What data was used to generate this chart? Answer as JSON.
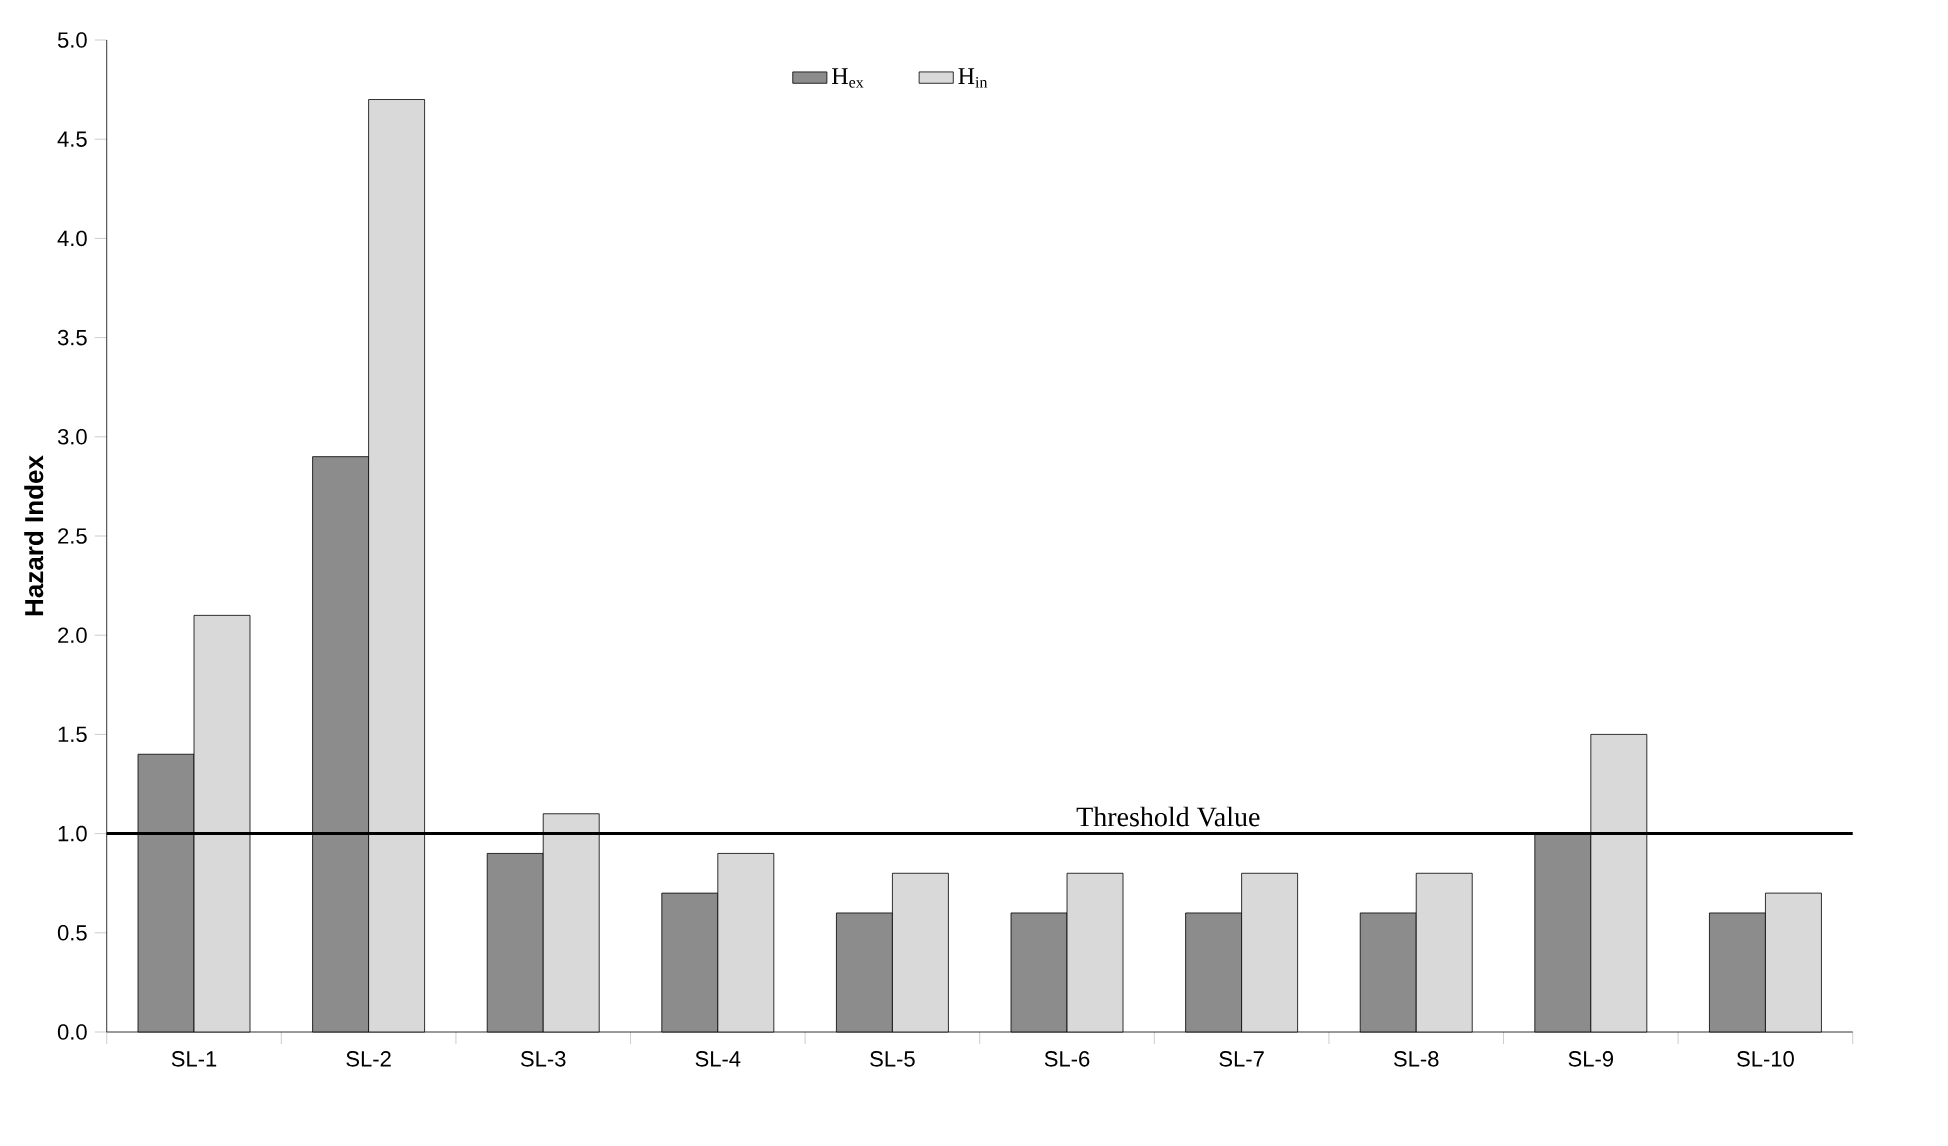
{
  "chart_data": {
    "type": "bar",
    "ylabel": "Hazard Index",
    "categories": [
      "SL-1",
      "SL-2",
      "SL-3",
      "SL-4",
      "SL-5",
      "SL-6",
      "SL-7",
      "SL-8",
      "SL-9",
      "SL-10"
    ],
    "series": [
      {
        "name": "H$_{ex}$",
        "color": "#8c8c8c",
        "values": [
          1.4,
          2.9,
          0.9,
          0.7,
          0.6,
          0.6,
          0.6,
          0.6,
          1.0,
          0.6
        ]
      },
      {
        "name": "H$_{in}$",
        "color": "#d9d9d9",
        "values": [
          2.1,
          4.7,
          1.1,
          0.9,
          0.8,
          0.8,
          0.8,
          0.8,
          1.5,
          0.7
        ]
      }
    ],
    "ylim": [
      0,
      5
    ],
    "yticks": [
      {
        "value": 0,
        "label": "0.0"
      },
      {
        "value": 0.5,
        "label": "0.5"
      },
      {
        "value": 1,
        "label": "1.0"
      },
      {
        "value": 1.5,
        "label": "1.5"
      },
      {
        "value": 2,
        "label": "2.0"
      },
      {
        "value": 2.5,
        "label": "2.5"
      },
      {
        "value": 3,
        "label": "3.0"
      },
      {
        "value": 3.5,
        "label": "3.5"
      },
      {
        "value": 4,
        "label": "4.0"
      },
      {
        "value": 4.5,
        "label": "4.5"
      },
      {
        "value": 5,
        "label": "5.0"
      }
    ],
    "ref_lines": [
      {
        "axis": "y",
        "value": 1.0,
        "label": "Threshold Value",
        "color": "#000000"
      }
    ],
    "legend": "top",
    "grid": false
  }
}
